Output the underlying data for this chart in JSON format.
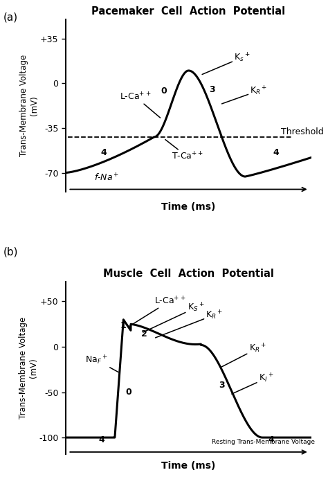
{
  "fig_width": 4.74,
  "fig_height": 7.05,
  "bg_color": "#ffffff",
  "panel_a": {
    "title": "Pacemaker  Cell  Action  Potential",
    "ylabel": "Trans-Membrane Voltage\n(mV)",
    "xlabel": "Time (ms)",
    "yticks": [
      -70,
      -35,
      0,
      35
    ],
    "yticklabels": [
      "-70",
      "-35",
      "0",
      "+35"
    ],
    "ylim": [
      -85,
      50
    ],
    "xlim": [
      0,
      1
    ],
    "threshold": -42
  },
  "panel_b": {
    "title": "Muscle  Cell  Action  Potential",
    "ylabel": "Trans-Membrane Voltage\n(mV)",
    "xlabel": "Time (ms)",
    "yticks": [
      -100,
      -50,
      0,
      50
    ],
    "yticklabels": [
      "-100",
      "-50",
      "0",
      "+50"
    ],
    "ylim": [
      -118,
      72
    ],
    "xlim": [
      0,
      1
    ]
  }
}
